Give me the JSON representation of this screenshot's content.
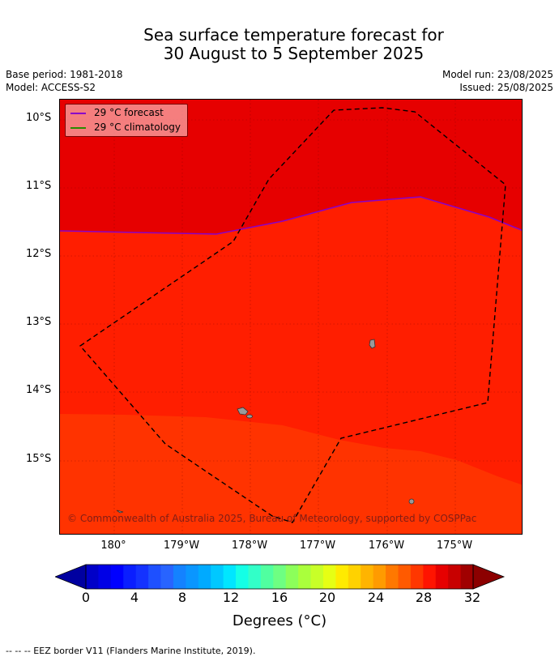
{
  "title": {
    "line1": "Sea surface temperature forecast for",
    "line2": "30 August to 5 September 2025"
  },
  "meta": {
    "base_period": "Base period: 1981-2018",
    "model": "Model: ACCESS-S2",
    "model_run": "Model run: 23/08/2025",
    "issued": "Issued: 25/08/2025"
  },
  "map": {
    "lat_labels": [
      "10°S",
      "11°S",
      "12°S",
      "13°S",
      "14°S",
      "15°S"
    ],
    "lon_labels": [
      "180°",
      "179°W",
      "178°W",
      "177°W",
      "176°W",
      "175°W"
    ],
    "legend": {
      "forecast": "29 °C  forecast",
      "climatology": "29 °C  climatology",
      "forecast_color": "#8a00c8",
      "climatology_color": "#2a8a00"
    },
    "copyright": "© Commonwealth of Australia 2025, Bureau of Meteorology, supported by COSPPac",
    "colors": {
      "band_30_32": "#e60000",
      "band_29_30": "#ff1e00",
      "band_28_29": "#ff3300"
    }
  },
  "colorbar": {
    "ticks": [
      "0",
      "4",
      "8",
      "12",
      "16",
      "20",
      "24",
      "28",
      "32"
    ],
    "label": "Degrees (°C)",
    "colors": [
      "#0000a0",
      "#0000c8",
      "#0000e6",
      "#0000ff",
      "#0a1eff",
      "#1432ff",
      "#1e50ff",
      "#2864ff",
      "#1482ff",
      "#0a96ff",
      "#00aaff",
      "#00c8ff",
      "#00e6ff",
      "#14ffe6",
      "#32ffc8",
      "#50ffa0",
      "#6eff82",
      "#8cff5a",
      "#aaff3c",
      "#c8ff28",
      "#e6ff14",
      "#ffeb00",
      "#ffd200",
      "#ffb400",
      "#ff9b00",
      "#ff7800",
      "#ff5a00",
      "#ff3700",
      "#ff1400",
      "#e60000",
      "#c80000",
      "#a00000",
      "#8c0000"
    ]
  },
  "footer": "--  --  -- EEZ border V11 (Flanders Marine Institute, 2019)."
}
